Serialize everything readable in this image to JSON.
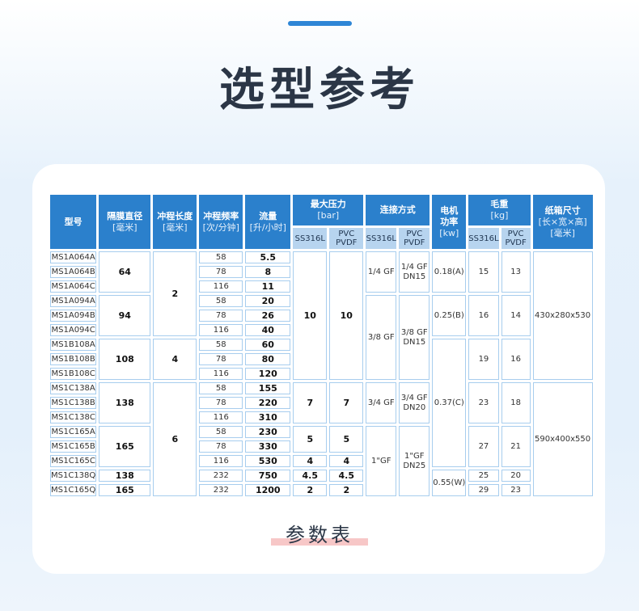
{
  "page": {
    "title": "选型参考",
    "footer": "参数表"
  },
  "colors": {
    "accent": "#2e86d6",
    "header": "#2b80cc",
    "subheader": "#b7d4ef",
    "cell_border": "#a7cdee",
    "highlight": "#f7c7c7"
  },
  "header": {
    "model": "型号",
    "diameter": {
      "name": "隔膜直径",
      "unit": "[毫米]"
    },
    "stroke": {
      "name": "冲程长度",
      "unit": "[毫米]"
    },
    "frequency": {
      "name": "冲程频率",
      "unit": "[次/分钟]"
    },
    "flow": {
      "name": "流量",
      "unit": "[升/小时]"
    },
    "pressure": {
      "name": "最大压力",
      "unit": "[bar]",
      "sub": [
        "SS316L",
        "PVC PVDF"
      ]
    },
    "connection": {
      "name": "连接方式",
      "sub": [
        "SS316L",
        "PVC PVDF"
      ]
    },
    "motor": {
      "name": "电机功率",
      "unit": "[kw]"
    },
    "weight": {
      "name": "毛重",
      "unit": "[kg]",
      "sub": [
        "SS316L",
        "PVC PVDF"
      ]
    },
    "box": {
      "name": "纸箱尺寸",
      "unit": "[长×宽×高]",
      "unit2": "[毫米]"
    }
  },
  "columns": [
    {
      "key": "model",
      "bold": false,
      "cells": [
        {
          "v": "MS1A064A",
          "span": 1
        },
        {
          "v": "MS1A064B",
          "span": 1
        },
        {
          "v": "MS1A064C",
          "span": 1
        },
        {
          "v": "MS1A094A",
          "span": 1
        },
        {
          "v": "MS1A094B",
          "span": 1
        },
        {
          "v": "MS1A094C",
          "span": 1
        },
        {
          "v": "MS1B108A",
          "span": 1
        },
        {
          "v": "MS1B108B",
          "span": 1
        },
        {
          "v": "MS1B108C",
          "span": 1
        },
        {
          "v": "MS1C138A",
          "span": 1
        },
        {
          "v": "MS1C138B",
          "span": 1
        },
        {
          "v": "MS1C138C",
          "span": 1
        },
        {
          "v": "MS1C165A",
          "span": 1
        },
        {
          "v": "MS1C165B",
          "span": 1
        },
        {
          "v": "MS1C165C",
          "span": 1
        },
        {
          "v": "MS1C138Q",
          "span": 1
        },
        {
          "v": "MS1C165Q",
          "span": 1
        }
      ]
    },
    {
      "key": "diameter",
      "bold": true,
      "cells": [
        {
          "v": "64",
          "span": 3
        },
        {
          "v": "94",
          "span": 3
        },
        {
          "v": "108",
          "span": 3
        },
        {
          "v": "138",
          "span": 3
        },
        {
          "v": "165",
          "span": 3
        },
        {
          "v": "138",
          "span": 1
        },
        {
          "v": "165",
          "span": 1
        }
      ]
    },
    {
      "key": "stroke",
      "bold": true,
      "cells": [
        {
          "v": "2",
          "span": 6
        },
        {
          "v": "4",
          "span": 3
        },
        {
          "v": "6",
          "span": 8
        }
      ]
    },
    {
      "key": "frequency",
      "bold": false,
      "cells": [
        {
          "v": "58",
          "span": 1
        },
        {
          "v": "78",
          "span": 1
        },
        {
          "v": "116",
          "span": 1
        },
        {
          "v": "58",
          "span": 1
        },
        {
          "v": "78",
          "span": 1
        },
        {
          "v": "116",
          "span": 1
        },
        {
          "v": "58",
          "span": 1
        },
        {
          "v": "78",
          "span": 1
        },
        {
          "v": "116",
          "span": 1
        },
        {
          "v": "58",
          "span": 1
        },
        {
          "v": "78",
          "span": 1
        },
        {
          "v": "116",
          "span": 1
        },
        {
          "v": "58",
          "span": 1
        },
        {
          "v": "78",
          "span": 1
        },
        {
          "v": "116",
          "span": 1
        },
        {
          "v": "232",
          "span": 1
        },
        {
          "v": "232",
          "span": 1
        }
      ]
    },
    {
      "key": "flow",
      "bold": true,
      "cells": [
        {
          "v": "5.5",
          "span": 1
        },
        {
          "v": "8",
          "span": 1
        },
        {
          "v": "11",
          "span": 1
        },
        {
          "v": "20",
          "span": 1
        },
        {
          "v": "26",
          "span": 1
        },
        {
          "v": "40",
          "span": 1
        },
        {
          "v": "60",
          "span": 1
        },
        {
          "v": "80",
          "span": 1
        },
        {
          "v": "120",
          "span": 1
        },
        {
          "v": "155",
          "span": 1
        },
        {
          "v": "220",
          "span": 1
        },
        {
          "v": "310",
          "span": 1
        },
        {
          "v": "230",
          "span": 1
        },
        {
          "v": "330",
          "span": 1
        },
        {
          "v": "530",
          "span": 1
        },
        {
          "v": "750",
          "span": 1
        },
        {
          "v": "1200",
          "span": 1
        }
      ]
    },
    {
      "key": "pressure-ss316l",
      "bold": true,
      "cells": [
        {
          "v": "10",
          "span": 9
        },
        {
          "v": "7",
          "span": 3
        },
        {
          "v": "5",
          "span": 2
        },
        {
          "v": "4",
          "span": 1
        },
        {
          "v": "4.5",
          "span": 1
        },
        {
          "v": "2",
          "span": 1
        }
      ]
    },
    {
      "key": "pressure-pvc-pvdf",
      "bold": true,
      "cells": [
        {
          "v": "10",
          "span": 9
        },
        {
          "v": "7",
          "span": 3
        },
        {
          "v": "5",
          "span": 2
        },
        {
          "v": "4",
          "span": 1
        },
        {
          "v": "4.5",
          "span": 1
        },
        {
          "v": "2",
          "span": 1
        }
      ]
    },
    {
      "key": "connection-ss316l",
      "bold": false,
      "cells": [
        {
          "v": "1/4 GF",
          "span": 3
        },
        {
          "v": "3/8 GF",
          "span": 6
        },
        {
          "v": "3/4 GF",
          "span": 3
        },
        {
          "v": "1\"GF",
          "span": 5
        }
      ]
    },
    {
      "key": "connection-pvc-pvdf",
      "bold": false,
      "cells": [
        {
          "v": "1/4 GF DN15",
          "span": 3
        },
        {
          "v": "3/8 GF DN15",
          "span": 6
        },
        {
          "v": "3/4 GF DN20",
          "span": 3
        },
        {
          "v": "1\"GF DN25",
          "span": 5
        }
      ]
    },
    {
      "key": "motor",
      "bold": false,
      "cells": [
        {
          "v": "0.18(A)",
          "span": 3
        },
        {
          "v": "0.25(B)",
          "span": 3
        },
        {
          "v": "0.37(C)",
          "span": 9
        },
        {
          "v": "0.55(W)",
          "span": 2
        }
      ]
    },
    {
      "key": "weight-ss316l",
      "bold": false,
      "cells": [
        {
          "v": "15",
          "span": 3
        },
        {
          "v": "16",
          "span": 3
        },
        {
          "v": "19",
          "span": 3
        },
        {
          "v": "23",
          "span": 3
        },
        {
          "v": "27",
          "span": 3
        },
        {
          "v": "25",
          "span": 1
        },
        {
          "v": "29",
          "span": 1
        }
      ]
    },
    {
      "key": "weight-pvc-pvdf",
      "bold": false,
      "cells": [
        {
          "v": "13",
          "span": 3
        },
        {
          "v": "14",
          "span": 3
        },
        {
          "v": "16",
          "span": 3
        },
        {
          "v": "18",
          "span": 3
        },
        {
          "v": "21",
          "span": 3
        },
        {
          "v": "20",
          "span": 1
        },
        {
          "v": "23",
          "span": 1
        }
      ]
    },
    {
      "key": "box",
      "bold": false,
      "cells": [
        {
          "v": "430x280x530",
          "span": 9
        },
        {
          "v": "590x400x550",
          "span": 8
        }
      ]
    }
  ]
}
